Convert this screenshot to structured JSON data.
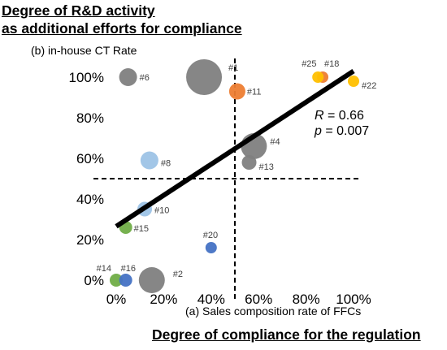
{
  "title_lines": [
    "Degree of R&D activity",
    "as additional efforts for compliance"
  ],
  "bottom_title": "Degree of compliance for the regulation",
  "chart_data": {
    "type": "scatter",
    "title": "",
    "xlabel": "(a) Sales composition rate of FFCs",
    "ylabel": "(b) in-house CT Rate",
    "xlim": [
      0,
      100
    ],
    "ylim": [
      0,
      100
    ],
    "xticks": [
      0,
      20,
      40,
      60,
      80,
      100
    ],
    "xtick_labels": [
      "0%",
      "20%",
      "40%",
      "60%",
      "80%",
      "100%"
    ],
    "yticks": [
      0,
      20,
      40,
      60,
      80,
      100
    ],
    "ytick_labels": [
      "0%",
      "20%",
      "40%",
      "60%",
      "80%",
      "100%"
    ],
    "grid": false,
    "threshold_lines": {
      "x": 50,
      "y": 50
    },
    "regression_line": {
      "x": [
        0,
        100
      ],
      "y": [
        26.5,
        103
      ]
    },
    "stats": {
      "r_label": "R",
      "r_value": "= 0.66",
      "p_label": "p",
      "p_value": "= 0.007"
    },
    "points": [
      {
        "label": "#1",
        "x": 37,
        "y": 100,
        "size": 22,
        "color": "#808080"
      },
      {
        "label": "#2",
        "x": 15,
        "y": 0,
        "size": 16,
        "color": "#808080"
      },
      {
        "label": "#4",
        "x": 58,
        "y": 66,
        "size": 16,
        "color": "#808080"
      },
      {
        "label": "#6",
        "x": 5,
        "y": 100,
        "size": 11,
        "color": "#808080"
      },
      {
        "label": "#8",
        "x": 14,
        "y": 59,
        "size": 11,
        "color": "#9dc3e6"
      },
      {
        "label": "#10",
        "x": 12,
        "y": 35,
        "size": 9,
        "color": "#9dc3e6"
      },
      {
        "label": "#11",
        "x": 51,
        "y": 93,
        "size": 10,
        "color": "#ed7d31"
      },
      {
        "label": "#13",
        "x": 56,
        "y": 58,
        "size": 9,
        "color": "#808080"
      },
      {
        "label": "#14",
        "x": 0,
        "y": 0,
        "size": 8,
        "color": "#70ad47"
      },
      {
        "label": "#15",
        "x": 4,
        "y": 26,
        "size": 8,
        "color": "#70ad47"
      },
      {
        "label": "#16",
        "x": 4,
        "y": 0,
        "size": 8,
        "color": "#4472c4"
      },
      {
        "label": "#18",
        "x": 87,
        "y": 100,
        "size": 7,
        "color": "#ed7d31"
      },
      {
        "label": "#20",
        "x": 40,
        "y": 16,
        "size": 7,
        "color": "#4472c4"
      },
      {
        "label": "#22",
        "x": 100,
        "y": 98,
        "size": 7,
        "color": "#ffc000"
      },
      {
        "label": "#25",
        "x": 85,
        "y": 100,
        "size": 7,
        "color": "#ffc000"
      }
    ]
  }
}
